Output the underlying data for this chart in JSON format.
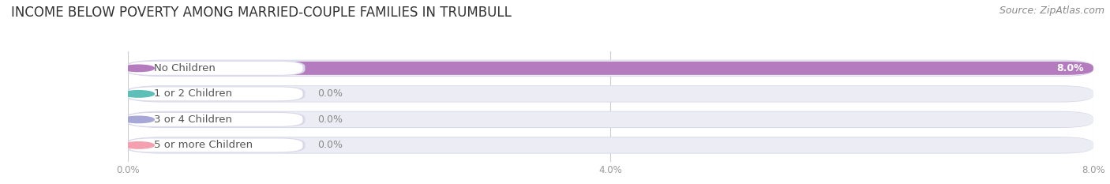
{
  "title": "INCOME BELOW POVERTY AMONG MARRIED-COUPLE FAMILIES IN TRUMBULL",
  "source": "Source: ZipAtlas.com",
  "categories": [
    "No Children",
    "1 or 2 Children",
    "3 or 4 Children",
    "5 or more Children"
  ],
  "values": [
    8.0,
    0.0,
    0.0,
    0.0
  ],
  "bar_colors": [
    "#b57bbf",
    "#5dbfb8",
    "#a8a8d8",
    "#f5a0b0"
  ],
  "bar_track_color": "#ecedf4",
  "bar_track_border": "#d8d8e8",
  "xlim": [
    0,
    8.0
  ],
  "xticks": [
    0.0,
    4.0,
    8.0
  ],
  "xticklabels": [
    "0.0%",
    "4.0%",
    "8.0%"
  ],
  "title_fontsize": 12,
  "source_fontsize": 9,
  "label_fontsize": 9.5,
  "value_fontsize": 9,
  "background_color": "#ffffff",
  "grid_color": "#cccccc",
  "text_color": "#555555",
  "label_text_color": "#555555"
}
